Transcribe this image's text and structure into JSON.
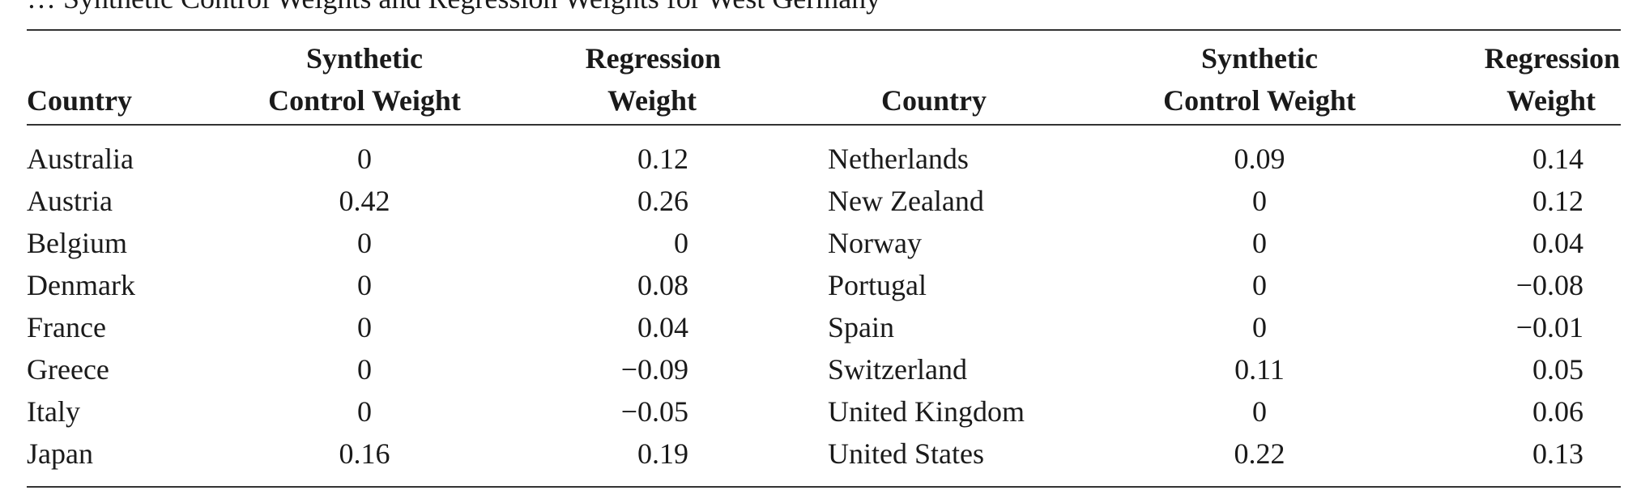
{
  "caption_fragment": "… Synthetic Control Weights and Regression Weights for West Germany",
  "columns": {
    "left": {
      "country": "Country",
      "synthetic_line1": "Synthetic",
      "synthetic_line2": "Control Weight",
      "regression_line1": "Regression",
      "regression_line2": "Weight"
    },
    "right": {
      "country": "Country",
      "synthetic_line1": "Synthetic",
      "synthetic_line2": "Control Weight",
      "regression_line1": "Regression",
      "regression_line2": "Weight"
    }
  },
  "rows_left": [
    {
      "country": "Australia",
      "synthetic": "0",
      "regression": "0.12"
    },
    {
      "country": "Austria",
      "synthetic": "0.42",
      "regression": "0.26"
    },
    {
      "country": "Belgium",
      "synthetic": "0",
      "regression": "0"
    },
    {
      "country": "Denmark",
      "synthetic": "0",
      "regression": "0.08"
    },
    {
      "country": "France",
      "synthetic": "0",
      "regression": "0.04"
    },
    {
      "country": "Greece",
      "synthetic": "0",
      "regression": "−0.09"
    },
    {
      "country": "Italy",
      "synthetic": "0",
      "regression": "−0.05"
    },
    {
      "country": "Japan",
      "synthetic": "0.16",
      "regression": "0.19"
    }
  ],
  "rows_right": [
    {
      "country": "Netherlands",
      "synthetic": "0.09",
      "regression": "0.14"
    },
    {
      "country": "New Zealand",
      "synthetic": "0",
      "regression": "0.12"
    },
    {
      "country": "Norway",
      "synthetic": "0",
      "regression": "0.04"
    },
    {
      "country": "Portugal",
      "synthetic": "0",
      "regression": "−0.08"
    },
    {
      "country": "Spain",
      "synthetic": "0",
      "regression": "−0.01"
    },
    {
      "country": "Switzerland",
      "synthetic": "0.11",
      "regression": "0.05"
    },
    {
      "country": "United Kingdom",
      "synthetic": "0",
      "regression": "0.06"
    },
    {
      "country": "United States",
      "synthetic": "0.22",
      "regression": "0.13"
    }
  ]
}
